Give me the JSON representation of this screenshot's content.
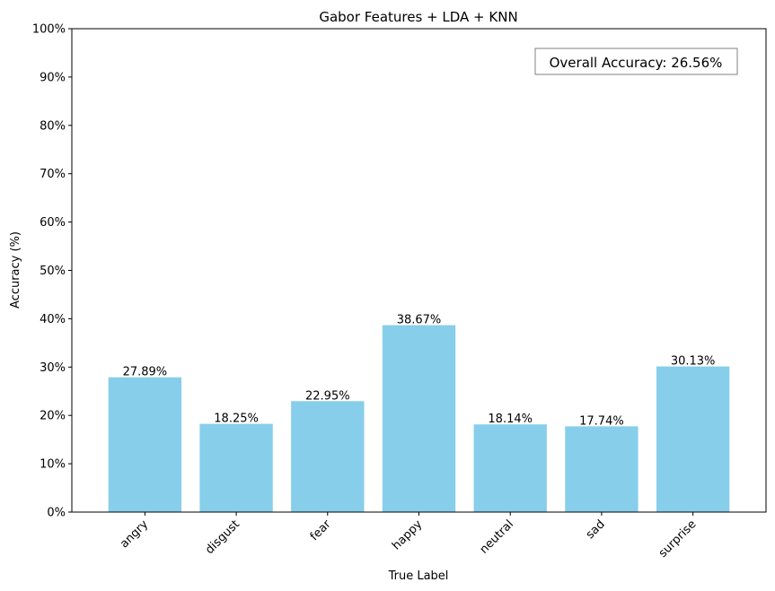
{
  "chart_data": {
    "type": "bar",
    "title": "Gabor Features + LDA + KNN",
    "xlabel": "True Label",
    "ylabel": "Accuracy (%)",
    "categories": [
      "angry",
      "disgust",
      "fear",
      "happy",
      "neutral",
      "sad",
      "surprise"
    ],
    "values": [
      27.89,
      18.25,
      22.95,
      38.67,
      18.14,
      17.74,
      30.13
    ],
    "data_labels": [
      "27.89%",
      "18.25%",
      "22.95%",
      "38.67%",
      "18.14%",
      "17.74%",
      "30.13%"
    ],
    "ylim": [
      0,
      100
    ],
    "yticks": [
      0,
      10,
      20,
      30,
      40,
      50,
      60,
      70,
      80,
      90,
      100
    ],
    "ytick_labels": [
      "0%",
      "10%",
      "20%",
      "30%",
      "40%",
      "50%",
      "60%",
      "70%",
      "80%",
      "90%",
      "100%"
    ],
    "grid": false,
    "bar_color": "#87ceeb",
    "annotation": "Overall Accuracy: 26.56%",
    "annotation_placement": "top-right"
  }
}
